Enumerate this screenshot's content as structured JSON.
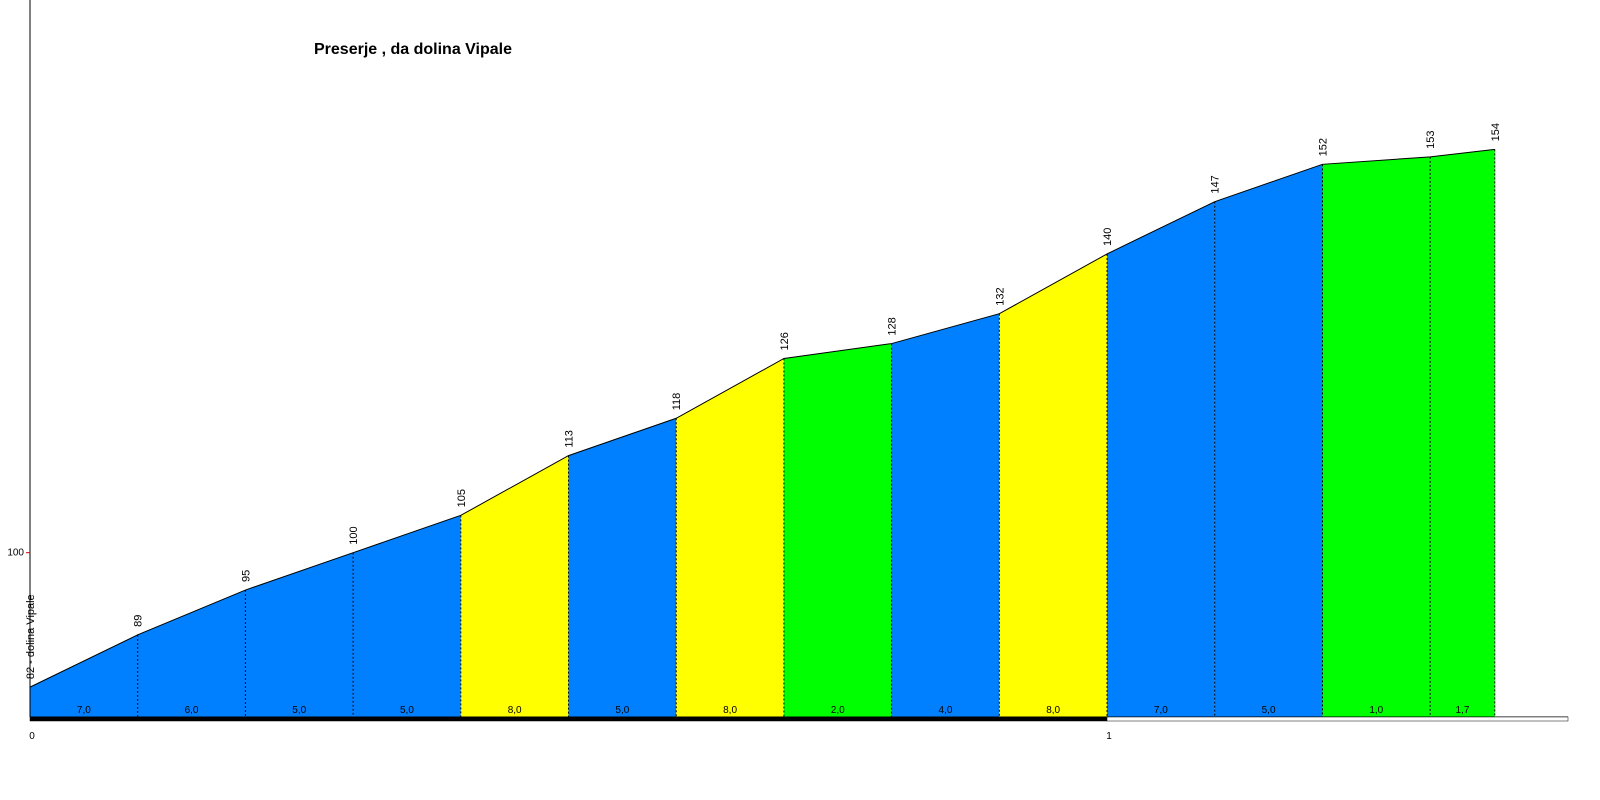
{
  "chart_data": {
    "type": "elevation-profile",
    "title": "Preserje , da dolina Vipale",
    "x": [
      0,
      0.1,
      0.2,
      0.3,
      0.4,
      0.5,
      0.6,
      0.7,
      0.8,
      0.9,
      1.0,
      1.1,
      1.2,
      1.3,
      1.36
    ],
    "elevations": [
      82,
      89,
      95,
      100,
      105,
      113,
      118,
      126,
      128,
      132,
      140,
      147,
      152,
      153,
      154
    ],
    "start_label": "82 - dolina Vipale",
    "grades": [
      7,
      6,
      5,
      5,
      8,
      5,
      8,
      2,
      4,
      8,
      7,
      5,
      1,
      1.7
    ],
    "grade_labels": [
      "7,0",
      "6,0",
      "5,0",
      "5,0",
      "8,0",
      "5,0",
      "8,0",
      "2,0",
      "4,0",
      "8,0",
      "7,0",
      "5,0",
      "1,0",
      "1,7"
    ],
    "colors": [
      "#0080ff",
      "#0080ff",
      "#0080ff",
      "#0080ff",
      "#ffff00",
      "#0080ff",
      "#ffff00",
      "#00ff00",
      "#0080ff",
      "#ffff00",
      "#0080ff",
      "#0080ff",
      "#00ff00",
      "#00ff00"
    ],
    "xlim": [
      0,
      1.428
    ],
    "ylim": [
      78,
      174
    ],
    "xticks": [
      0,
      1
    ],
    "yticks": [
      100
    ]
  }
}
